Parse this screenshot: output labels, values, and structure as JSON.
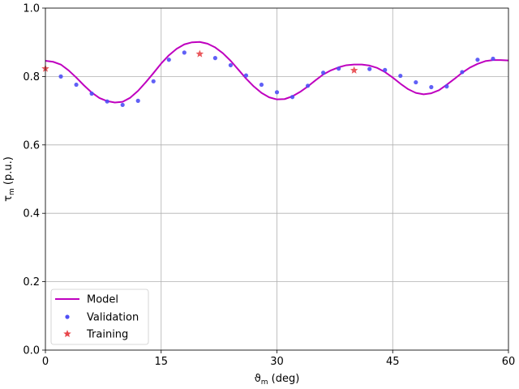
{
  "chart_data": {
    "type": "line",
    "xlabel": {
      "symbol": "ϑ",
      "sub": "m",
      "unit": " (deg)"
    },
    "ylabel": {
      "symbol": "τ",
      "sub": "m",
      "unit": " (p.u.)"
    },
    "xlim": [
      0,
      60
    ],
    "ylim": [
      0,
      1.0
    ],
    "xticks": [
      0,
      15,
      30,
      45,
      60
    ],
    "yticks": [
      0.0,
      0.2,
      0.4,
      0.6,
      0.8,
      1.0
    ],
    "xtick_labels": [
      "0",
      "15",
      "30",
      "45",
      "60"
    ],
    "ytick_labels": [
      "0.0",
      "0.2",
      "0.4",
      "0.6",
      "0.8",
      "1.0"
    ],
    "grid": true,
    "legend_position": "lower-left",
    "colors": {
      "model": "#bf00bf",
      "validation": "#4f4ff5",
      "training": "#e8474b"
    },
    "series": [
      {
        "name": "Model",
        "kind": "line",
        "x": [
          0,
          1,
          2,
          3,
          4,
          5,
          6,
          7,
          8,
          9,
          10,
          11,
          12,
          13,
          14,
          15,
          16,
          17,
          18,
          19,
          20,
          21,
          22,
          23,
          24,
          25,
          26,
          27,
          28,
          29,
          30,
          31,
          32,
          33,
          34,
          35,
          36,
          37,
          38,
          39,
          40,
          41,
          42,
          43,
          44,
          45,
          46,
          47,
          48,
          49,
          50,
          51,
          52,
          53,
          54,
          55,
          56,
          57,
          58,
          59,
          60
        ],
        "y": [
          0.846,
          0.843,
          0.835,
          0.818,
          0.797,
          0.774,
          0.753,
          0.737,
          0.728,
          0.724,
          0.726,
          0.738,
          0.758,
          0.783,
          0.81,
          0.838,
          0.862,
          0.881,
          0.894,
          0.9,
          0.901,
          0.896,
          0.885,
          0.868,
          0.846,
          0.82,
          0.794,
          0.771,
          0.752,
          0.739,
          0.733,
          0.734,
          0.742,
          0.755,
          0.771,
          0.789,
          0.806,
          0.818,
          0.827,
          0.833,
          0.835,
          0.835,
          0.832,
          0.825,
          0.813,
          0.797,
          0.779,
          0.763,
          0.752,
          0.748,
          0.751,
          0.76,
          0.776,
          0.793,
          0.811,
          0.826,
          0.837,
          0.845,
          0.848,
          0.848,
          0.847
        ]
      },
      {
        "name": "Validation",
        "kind": "scatter",
        "marker": "circle",
        "x": [
          2,
          4,
          6,
          8,
          10,
          12,
          14,
          16,
          18,
          22,
          24,
          26,
          28,
          30,
          32,
          34,
          36,
          38,
          42,
          44,
          46,
          48,
          50,
          52,
          54,
          56,
          58
        ],
        "y": [
          0.8,
          0.776,
          0.75,
          0.727,
          0.717,
          0.729,
          0.786,
          0.849,
          0.87,
          0.854,
          0.833,
          0.803,
          0.776,
          0.754,
          0.74,
          0.773,
          0.811,
          0.823,
          0.822,
          0.819,
          0.802,
          0.783,
          0.769,
          0.771,
          0.813,
          0.849,
          0.852
        ]
      },
      {
        "name": "Training",
        "kind": "scatter",
        "marker": "star",
        "x": [
          0,
          20,
          40
        ],
        "y": [
          0.823,
          0.866,
          0.818
        ]
      }
    ]
  }
}
